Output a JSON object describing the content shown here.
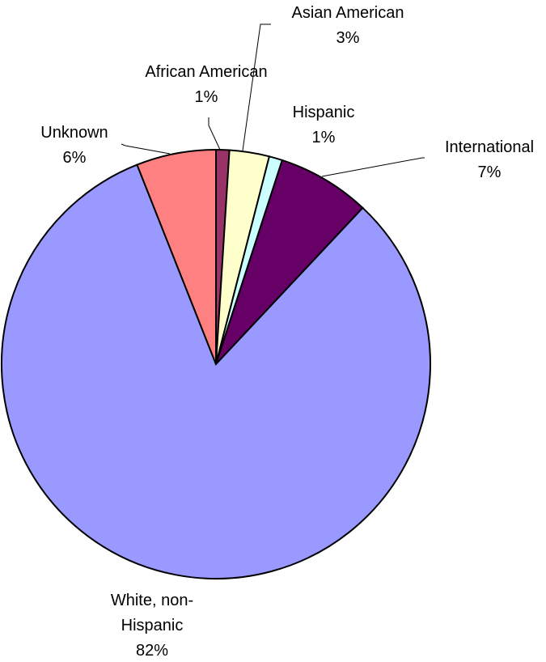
{
  "chart_data": {
    "type": "pie",
    "title": "",
    "categories": [
      "African American",
      "Asian American",
      "Hispanic",
      "International",
      "White, non-Hispanic",
      "Unknown"
    ],
    "values": [
      1,
      3,
      1,
      7,
      82,
      6
    ],
    "labels": [
      {
        "name_lines": [
          "African American"
        ],
        "pct": "1%"
      },
      {
        "name_lines": [
          "Asian American"
        ],
        "pct": "3%"
      },
      {
        "name_lines": [
          "Hispanic"
        ],
        "pct": "1%"
      },
      {
        "name_lines": [
          "International"
        ],
        "pct": "7%"
      },
      {
        "name_lines": [
          "White, non-",
          "Hispanic"
        ],
        "pct": "82%"
      },
      {
        "name_lines": [
          "Unknown"
        ],
        "pct": "6%"
      }
    ],
    "colors": [
      "#993366",
      "#FFFFCC",
      "#CCFFFF",
      "#660066",
      "#9999FF",
      "#FF8080"
    ],
    "legend": "none"
  }
}
